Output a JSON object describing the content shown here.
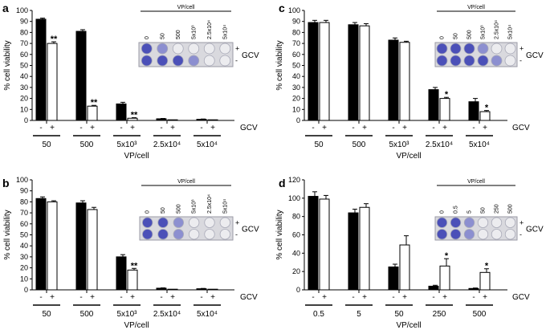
{
  "chart_data": [
    {
      "panel": "a",
      "type": "bar",
      "ylabel": "% cell viability",
      "xlabel": "VP/cell",
      "ylim": [
        0,
        100
      ],
      "yticks": [
        0,
        10,
        20,
        30,
        40,
        50,
        60,
        70,
        80,
        90,
        100
      ],
      "categories": [
        "50",
        "500",
        "5x10³",
        "2.5x10⁴",
        "5x10⁴"
      ],
      "series": [
        {
          "name": "-",
          "fill": "#000000",
          "values": [
            92,
            81,
            15,
            1.5,
            1
          ],
          "errors": [
            1,
            1.5,
            1.5,
            0.3,
            0.3
          ]
        },
        {
          "name": "+",
          "fill": "#ffffff",
          "values": [
            70,
            13,
            2,
            0.5,
            0.5
          ],
          "errors": [
            1.5,
            0.7,
            0.5,
            0.2,
            0.2
          ]
        }
      ],
      "significance": [
        "**",
        "**",
        "**",
        "",
        ""
      ],
      "treatment_label": "GCV",
      "treatment_marks": [
        "-",
        "+"
      ],
      "inset": {
        "title": "VP/cell",
        "labels": [
          "0",
          "50",
          "500",
          "5x10³",
          "2.5x10⁴",
          "5x10⁴"
        ],
        "row_marks": [
          "+",
          "-"
        ],
        "row_label": "GCV",
        "stained_top": 2,
        "stained_bottom": 4
      }
    },
    {
      "panel": "b",
      "type": "bar",
      "ylabel": "% cell viability",
      "xlabel": "VP/cell",
      "ylim": [
        0,
        100
      ],
      "yticks": [
        0,
        10,
        20,
        30,
        40,
        50,
        60,
        70,
        80,
        90,
        100
      ],
      "categories": [
        "50",
        "500",
        "5x10³",
        "2.5x10⁴",
        "5x10⁴"
      ],
      "series": [
        {
          "name": "-",
          "fill": "#000000",
          "values": [
            83,
            79,
            30,
            1.5,
            1
          ],
          "errors": [
            1.5,
            2,
            2,
            0.3,
            0.3
          ]
        },
        {
          "name": "+",
          "fill": "#ffffff",
          "values": [
            80,
            73,
            18,
            0.5,
            0.5
          ],
          "errors": [
            1,
            2,
            1.5,
            0.2,
            0.2
          ]
        }
      ],
      "significance": [
        "",
        "",
        "**",
        "",
        ""
      ],
      "treatment_label": "GCV",
      "treatment_marks": [
        "-",
        "+"
      ],
      "inset": {
        "title": "VP/cell",
        "labels": [
          "0",
          "50",
          "500",
          "5x10³",
          "2.5x10⁴",
          "5x10⁴"
        ],
        "row_marks": [
          "+",
          "-"
        ],
        "row_label": "GCV",
        "stained_top": 3,
        "stained_bottom": 3
      }
    },
    {
      "panel": "c",
      "type": "bar",
      "ylabel": "% cell viability",
      "xlabel": "VP/cell",
      "ylim": [
        0,
        100
      ],
      "yticks": [
        0,
        10,
        20,
        30,
        40,
        50,
        60,
        70,
        80,
        90,
        100
      ],
      "categories": [
        "50",
        "500",
        "5x10³",
        "2.5x10⁴",
        "5x10⁴"
      ],
      "series": [
        {
          "name": "-",
          "fill": "#000000",
          "values": [
            89,
            87,
            73,
            28,
            17
          ],
          "errors": [
            2,
            2,
            2,
            2,
            3
          ]
        },
        {
          "name": "+",
          "fill": "#ffffff",
          "values": [
            89,
            86,
            71,
            20,
            8
          ],
          "errors": [
            2,
            2,
            1,
            1,
            1
          ]
        }
      ],
      "significance": [
        "",
        "",
        "",
        "*",
        "*"
      ],
      "treatment_label": "GCV",
      "treatment_marks": [
        "-",
        "+"
      ],
      "inset": {
        "title": "VP/cell",
        "labels": [
          "0",
          "50",
          "500",
          "5x10³",
          "2.5x10⁴",
          "5x10⁴"
        ],
        "row_marks": [
          "+",
          "-"
        ],
        "row_label": "GCV",
        "stained_top": 4,
        "stained_bottom": 5
      }
    },
    {
      "panel": "d",
      "type": "bar",
      "ylabel": "% cell viability",
      "xlabel": "VP/cell",
      "ylim": [
        0,
        120
      ],
      "yticks": [
        0,
        20,
        40,
        60,
        80,
        100,
        120
      ],
      "categories": [
        "0.5",
        "5",
        "50",
        "250",
        "500"
      ],
      "series": [
        {
          "name": "-",
          "fill": "#000000",
          "values": [
            102,
            84,
            25,
            4,
            1.5
          ],
          "errors": [
            5,
            4,
            3,
            1,
            0.5
          ]
        },
        {
          "name": "+",
          "fill": "#ffffff",
          "values": [
            99,
            90,
            49,
            26,
            19
          ],
          "errors": [
            4,
            4,
            10,
            8,
            4
          ]
        }
      ],
      "significance": [
        "",
        "",
        "",
        "*",
        "*"
      ],
      "treatment_label": "GCV",
      "treatment_marks": [
        "-",
        "+"
      ],
      "inset": {
        "title": "VP/cell",
        "labels": [
          "0",
          "0.5",
          "5",
          "50",
          "250",
          "500"
        ],
        "row_marks": [
          "+",
          "-"
        ],
        "row_label": "GCV",
        "stained_top": 3,
        "stained_bottom": 3
      }
    }
  ]
}
